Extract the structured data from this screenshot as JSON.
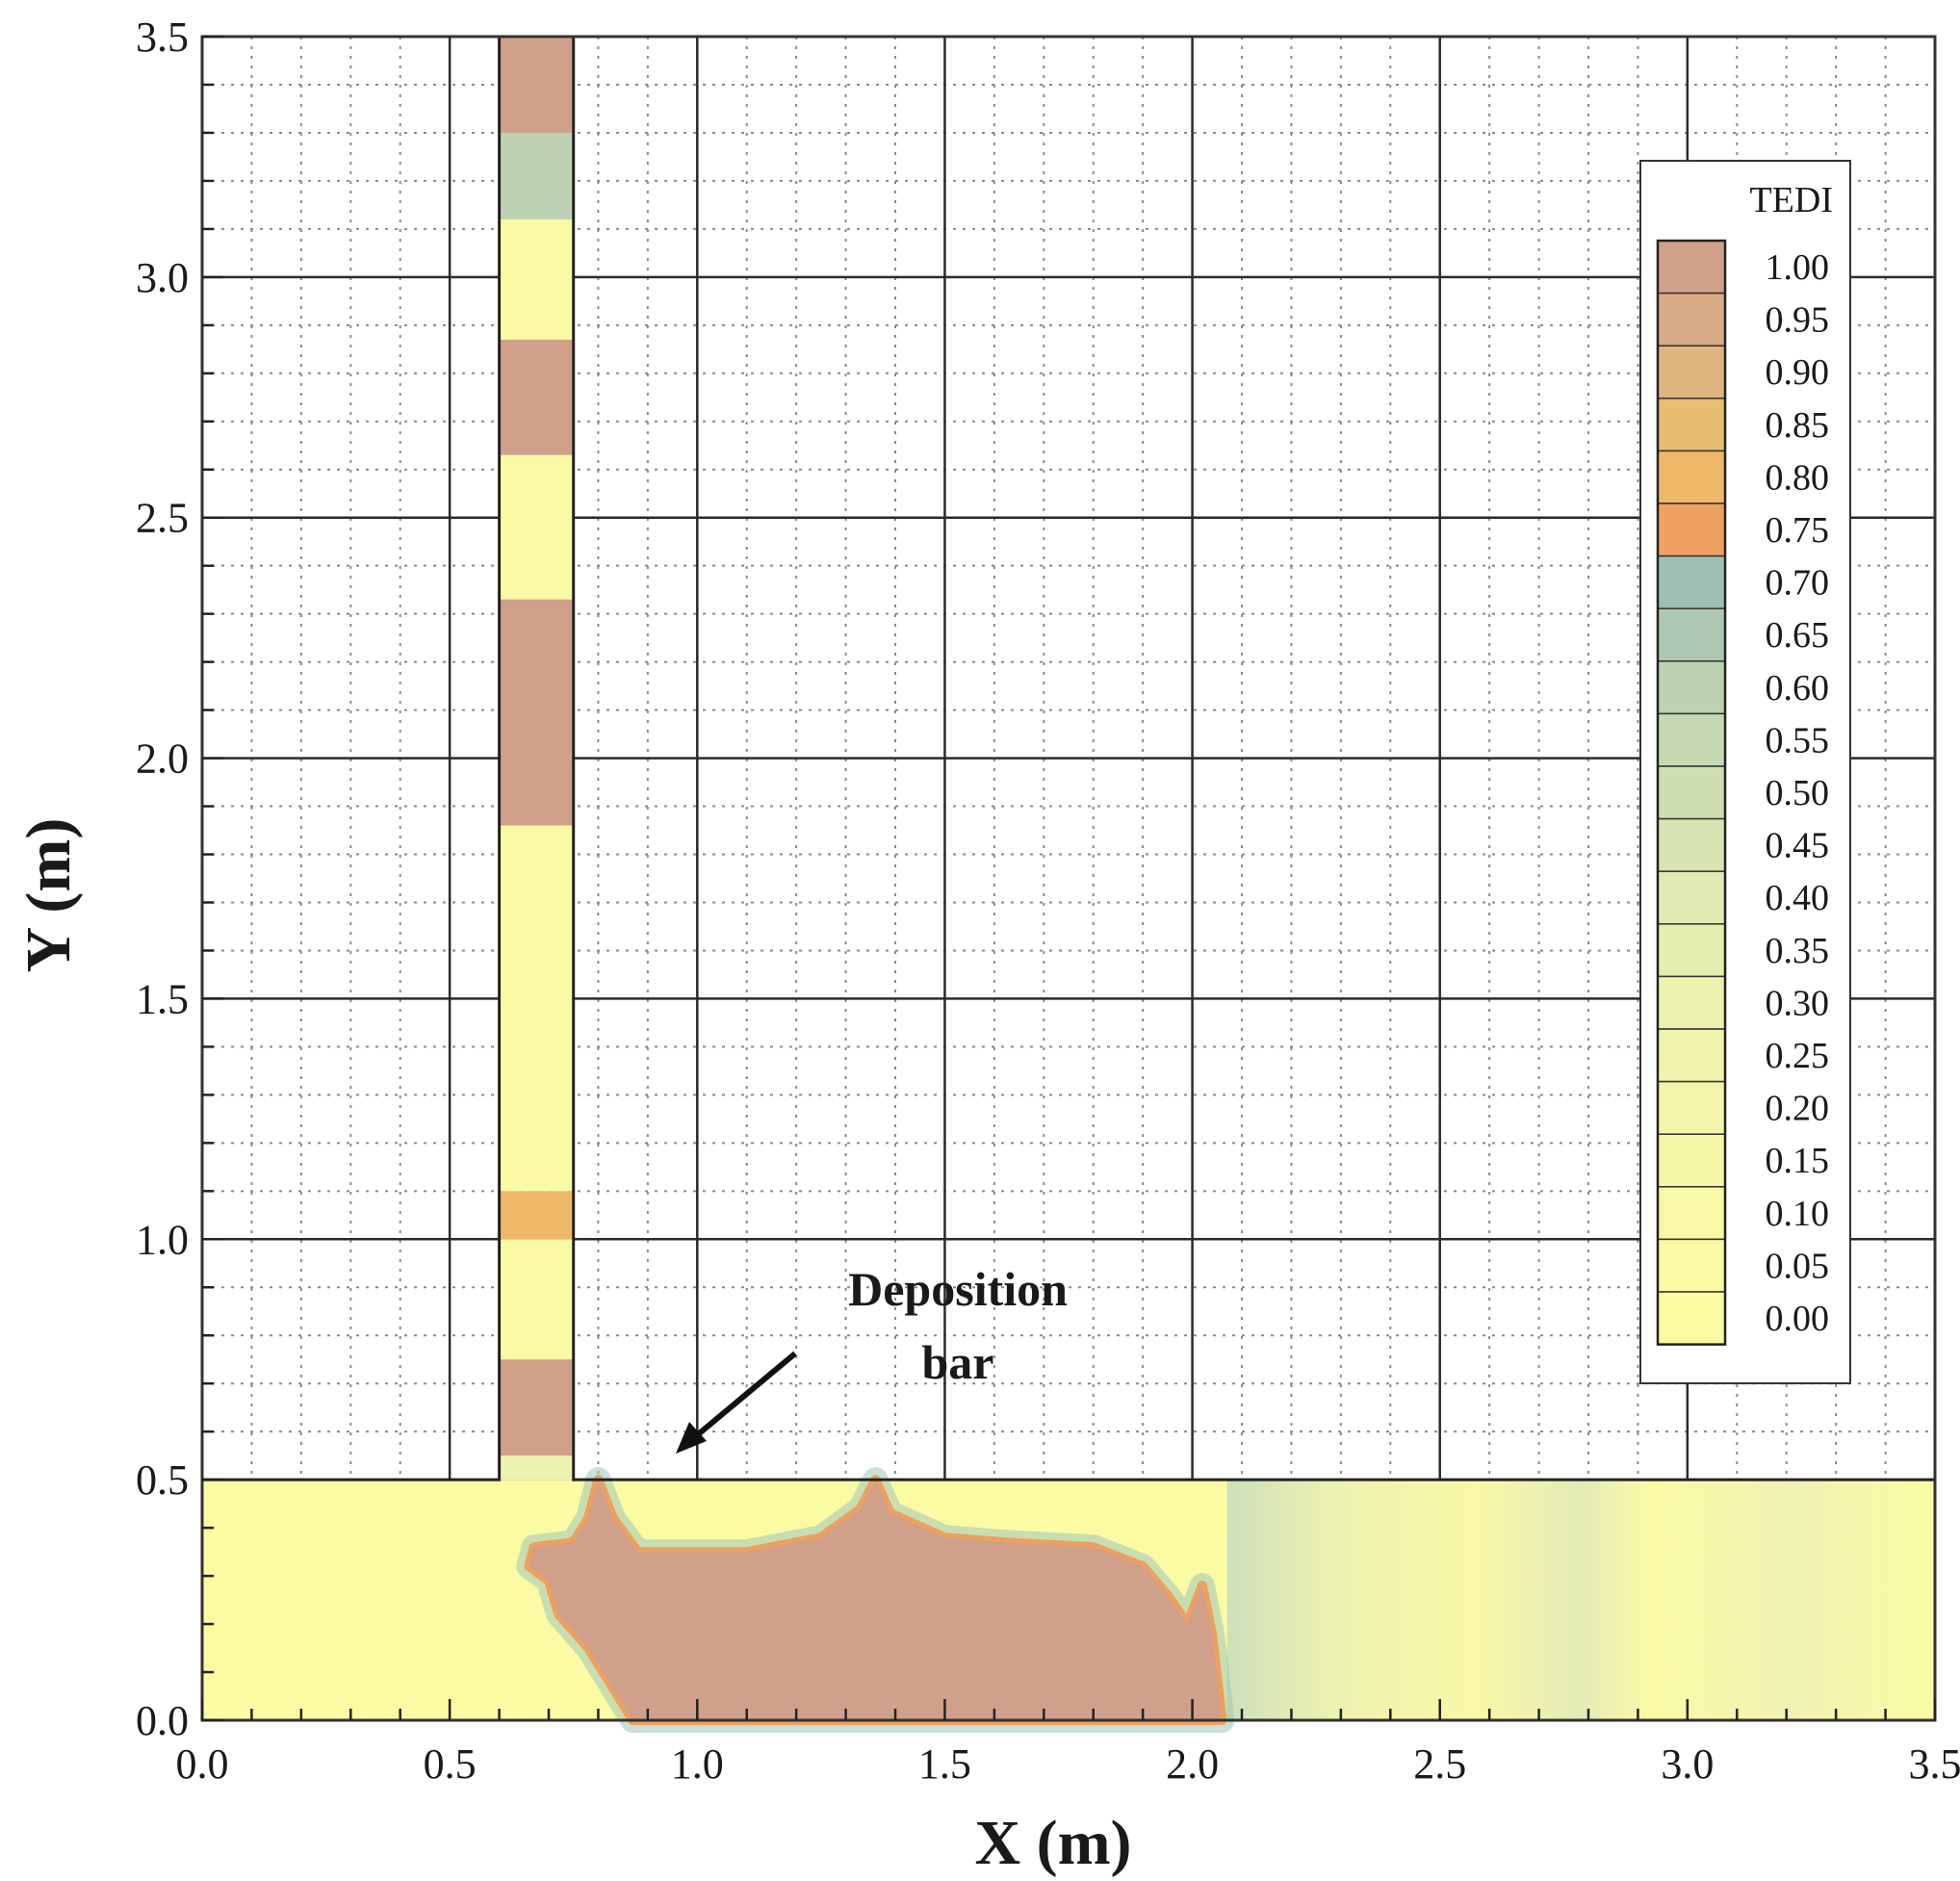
{
  "chart_data": {
    "type": "heatmap",
    "title": "",
    "xlabel": "X (m)",
    "ylabel": "Y (m)",
    "xlim": [
      0.0,
      3.5
    ],
    "ylim": [
      0.0,
      3.5
    ],
    "xticks": [
      "0.0",
      "0.5",
      "1.0",
      "1.5",
      "2.0",
      "2.5",
      "3.0",
      "3.5"
    ],
    "yticks": [
      "0.0",
      "0.5",
      "1.0",
      "1.5",
      "2.0",
      "2.5",
      "3.0",
      "3.5"
    ],
    "grid": true,
    "colorbar": {
      "title": "TEDI",
      "levels": [
        "1.00",
        "0.95",
        "0.90",
        "0.85",
        "0.80",
        "0.75",
        "0.70",
        "0.65",
        "0.60",
        "0.55",
        "0.50",
        "0.45",
        "0.40",
        "0.35",
        "0.30",
        "0.25",
        "0.20",
        "0.15",
        "0.10",
        "0.05",
        "0.00"
      ],
      "colors": [
        "#d0a08a",
        "#d8aa85",
        "#e0b47e",
        "#e7bd70",
        "#eeb868",
        "#eea060",
        "#9fbfb2",
        "#adc8b3",
        "#bcd2b3",
        "#c6d9b2",
        "#cfdeb1",
        "#d8e4b2",
        "#e0eab2",
        "#e6edb0",
        "#ecf2ae",
        "#f0f4ac",
        "#f3f6aa",
        "#f6f7a8",
        "#f8f8a6",
        "#fafaa5",
        "#fbfba4"
      ],
      "placement": "right"
    },
    "domain_regions": {
      "main_channel": {
        "x": [
          0.0,
          3.5
        ],
        "y": [
          0.0,
          0.5
        ]
      },
      "tributary": {
        "x": [
          0.6,
          0.75
        ],
        "y": [
          0.5,
          3.5
        ]
      }
    },
    "tributary_bands": [
      {
        "y": [
          3.3,
          3.5
        ],
        "tedi": 1.0
      },
      {
        "y": [
          3.12,
          3.3
        ],
        "tedi": 0.6
      },
      {
        "y": [
          2.87,
          3.12
        ],
        "tedi": 0.05
      },
      {
        "y": [
          2.63,
          2.87
        ],
        "tedi": 1.0
      },
      {
        "y": [
          2.33,
          2.63
        ],
        "tedi": 0.05
      },
      {
        "y": [
          1.86,
          2.33
        ],
        "tedi": 1.0
      },
      {
        "y": [
          1.1,
          1.86
        ],
        "tedi": 0.05
      },
      {
        "y": [
          1.0,
          1.1
        ],
        "tedi": 0.8
      },
      {
        "y": [
          0.75,
          1.0
        ],
        "tedi": 0.05
      },
      {
        "y": [
          0.55,
          0.75
        ],
        "tedi": 1.0
      },
      {
        "y": [
          0.5,
          0.55
        ],
        "tedi": 0.3
      }
    ],
    "deposition_outline": [
      [
        0.87,
        0.0
      ],
      [
        0.81,
        0.1
      ],
      [
        0.78,
        0.15
      ],
      [
        0.72,
        0.22
      ],
      [
        0.7,
        0.29
      ],
      [
        0.66,
        0.32
      ],
      [
        0.67,
        0.36
      ],
      [
        0.75,
        0.37
      ],
      [
        0.78,
        0.42
      ],
      [
        0.8,
        0.5
      ],
      [
        0.83,
        0.42
      ],
      [
        0.88,
        0.35
      ],
      [
        1.1,
        0.35
      ],
      [
        1.25,
        0.38
      ],
      [
        1.33,
        0.44
      ],
      [
        1.36,
        0.5
      ],
      [
        1.39,
        0.43
      ],
      [
        1.5,
        0.38
      ],
      [
        1.62,
        0.37
      ],
      [
        1.8,
        0.36
      ],
      [
        1.9,
        0.32
      ],
      [
        1.95,
        0.26
      ],
      [
        1.99,
        0.2
      ],
      [
        2.02,
        0.28
      ],
      [
        2.04,
        0.18
      ],
      [
        2.06,
        0.0
      ]
    ],
    "annotations": [
      {
        "text_line1": "Deposition",
        "text_line2": "bar",
        "points_to": [
          0.98,
          0.55
        ]
      }
    ]
  }
}
